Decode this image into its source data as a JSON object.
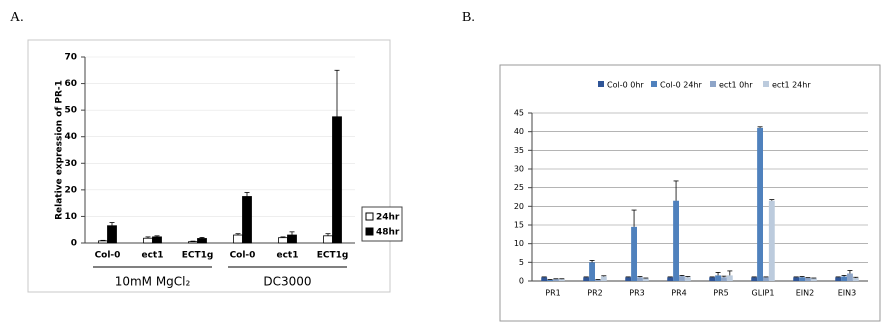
{
  "chart_data": [
    {
      "type": "bar",
      "panel": "A.",
      "y_label": "Relative expression of PR-1",
      "categories": [
        "Col-0",
        "ect1",
        "ECT1g",
        "Col-0",
        "ect1",
        "ECT1g"
      ],
      "groups": [
        "10mM MgCl₂",
        "DC3000"
      ],
      "group_label_color": "#e00000",
      "series": [
        {
          "name": "24hr",
          "color": "#ffffff",
          "values": [
            0.8,
            1.8,
            0.5,
            3,
            2,
            2.7
          ],
          "errors": [
            0.2,
            0.5,
            0.2,
            0.5,
            0.3,
            0.8
          ]
        },
        {
          "name": "48hr",
          "color": "#000000",
          "values": [
            6.5,
            2.3,
            1.7,
            17.5,
            3,
            47.5
          ],
          "errors": [
            1.2,
            0.4,
            0.4,
            1.5,
            1.2,
            17.5
          ]
        }
      ],
      "ylim": [
        0,
        70
      ],
      "yticks": [
        0,
        10,
        20,
        30,
        40,
        50,
        60,
        70
      ],
      "grid": true,
      "legend": "right"
    },
    {
      "type": "bar",
      "panel": "B.",
      "categories": [
        "PR1",
        "PR2",
        "PR3",
        "PR4",
        "PR5",
        "GLIP1",
        "EIN2",
        "EIN3"
      ],
      "series": [
        {
          "name": "Col-0 0hr",
          "color": "#2f5597",
          "values": [
            1,
            1,
            1,
            1,
            1,
            1,
            1,
            1
          ],
          "errors": [
            0.1,
            0.1,
            0.1,
            0.1,
            0.1,
            0.1,
            0.1,
            0.1
          ]
        },
        {
          "name": "Col-0 24hr",
          "color": "#4f81bd",
          "values": [
            0.3,
            5,
            14.5,
            21.5,
            1.5,
            41,
            1,
            1.2
          ],
          "errors": [
            0.1,
            0.5,
            4.5,
            5.3,
            0.8,
            0.3,
            0.2,
            0.3
          ]
        },
        {
          "name": "ect1 0hr",
          "color": "#8ea5c8",
          "values": [
            0.5,
            0.3,
            1,
            1.3,
            1,
            1,
            0.8,
            2
          ],
          "errors": [
            0.1,
            0.1,
            0.2,
            0.2,
            0.3,
            0.1,
            0.1,
            0.8
          ]
        },
        {
          "name": "ect1 24hr",
          "color": "#bccbdd",
          "values": [
            0.5,
            1.2,
            0.7,
            1,
            1.5,
            21.5,
            0.7,
            0.8
          ],
          "errors": [
            0.1,
            0.2,
            0.1,
            0.2,
            1.2,
            0.3,
            0.1,
            0.2
          ]
        }
      ],
      "ylim": [
        0,
        45
      ],
      "yticks": [
        0,
        5,
        10,
        15,
        20,
        25,
        30,
        35,
        40,
        45
      ],
      "grid": true,
      "legend": "top"
    }
  ]
}
